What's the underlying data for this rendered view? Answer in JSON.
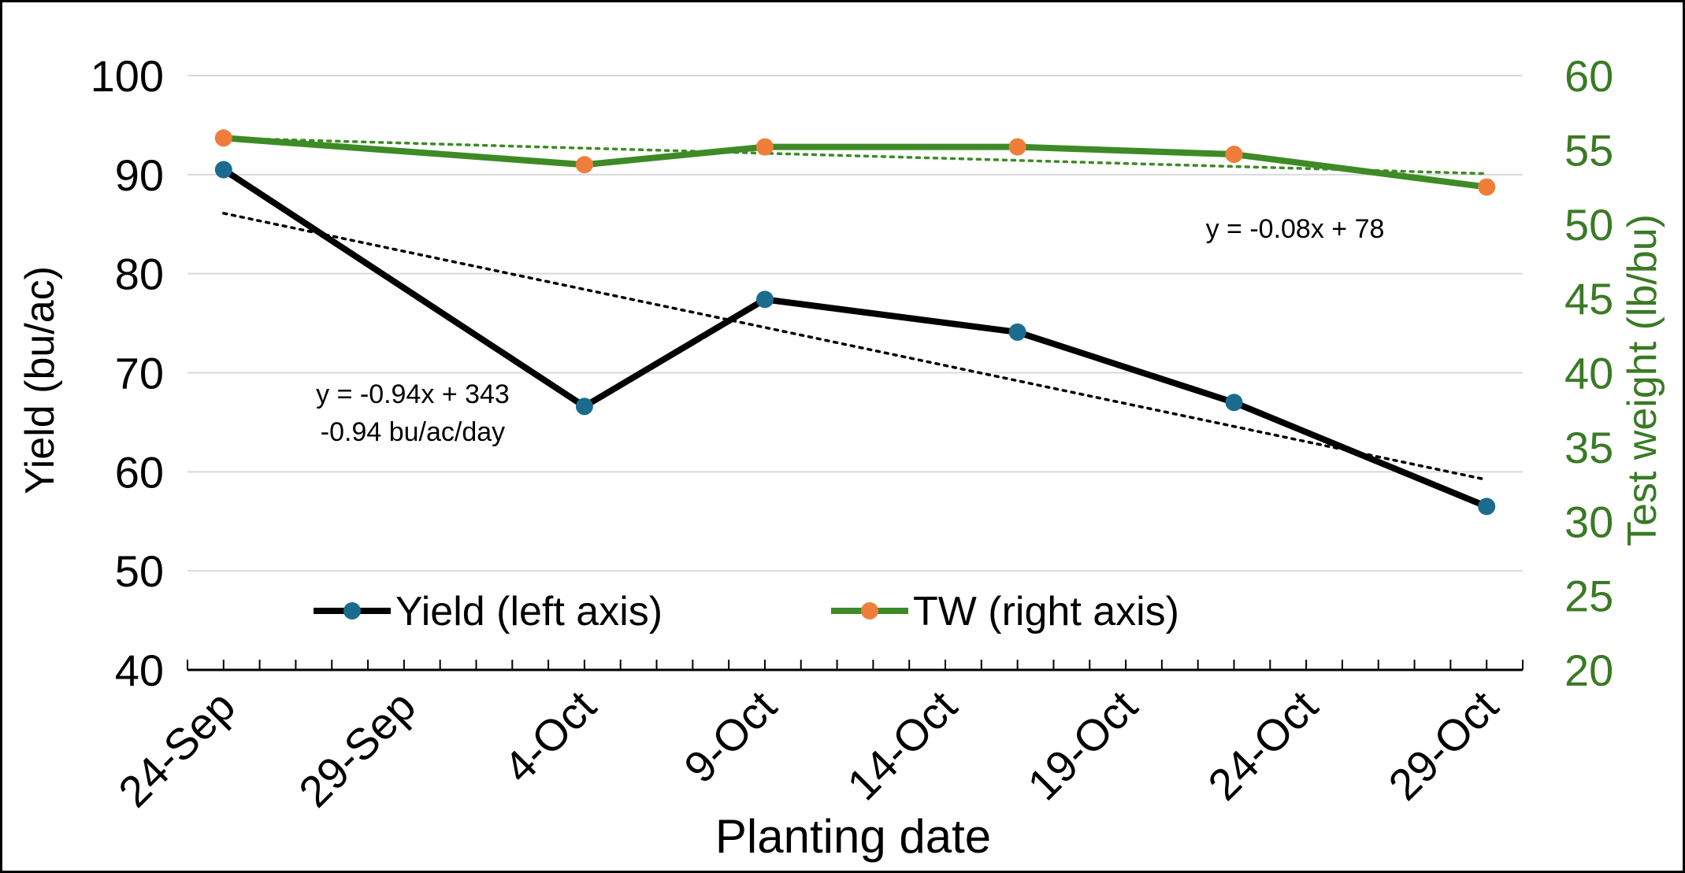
{
  "colors": {
    "yield_line": "#000000",
    "yield_marker": "#1b6b8f",
    "tw_line": "#3e8a26",
    "tw_marker": "#ee7e3a",
    "right_axis_text": "#3a7a25",
    "gridline": "#d9d9d9"
  },
  "chart_data": {
    "type": "line",
    "xlabel": "Planting date",
    "ylabel": "Yield (bu/ac)",
    "y2label": "Test weight (lb/bu)",
    "x_tick_labels": [
      "24-Sep",
      "29-Sep",
      "4-Oct",
      "9-Oct",
      "14-Oct",
      "19-Oct",
      "24-Oct",
      "29-Oct"
    ],
    "x_range": [
      "2023-09-23",
      "2023-10-30"
    ],
    "ylim": [
      40,
      100
    ],
    "y_ticks": [
      "40",
      "50",
      "60",
      "70",
      "80",
      "90",
      "100"
    ],
    "y2lim": [
      20,
      60
    ],
    "y2_ticks": [
      "20",
      "25",
      "30",
      "35",
      "40",
      "45",
      "50",
      "55",
      "60"
    ],
    "grid": true,
    "legend_position": "bottom-center (inside plot)",
    "series": [
      {
        "name": "Yield (left axis)",
        "axis": "left",
        "x": [
          "2023-09-24",
          "2023-10-04",
          "2023-10-09",
          "2023-10-16",
          "2023-10-22",
          "2023-10-29"
        ],
        "y": [
          90.5,
          66.6,
          77.4,
          74.1,
          67.0,
          56.5
        ]
      },
      {
        "name": "TW (right axis)",
        "axis": "right",
        "x": [
          "2023-09-24",
          "2023-10-04",
          "2023-10-09",
          "2023-10-16",
          "2023-10-22",
          "2023-10-29"
        ],
        "y": [
          55.8,
          54.0,
          55.2,
          55.2,
          54.7,
          52.5
        ]
      }
    ],
    "trendlines": [
      {
        "series": "Yield (left axis)",
        "label": "y = -0.94x + 343",
        "label2": "-0.94 bu/ac/day",
        "y_start": 86.1,
        "y_end": 59.2
      },
      {
        "series": "TW (right axis)",
        "label": "y = -0.08x + 78",
        "y_start": 55.8,
        "y_end": 53.4
      }
    ]
  }
}
